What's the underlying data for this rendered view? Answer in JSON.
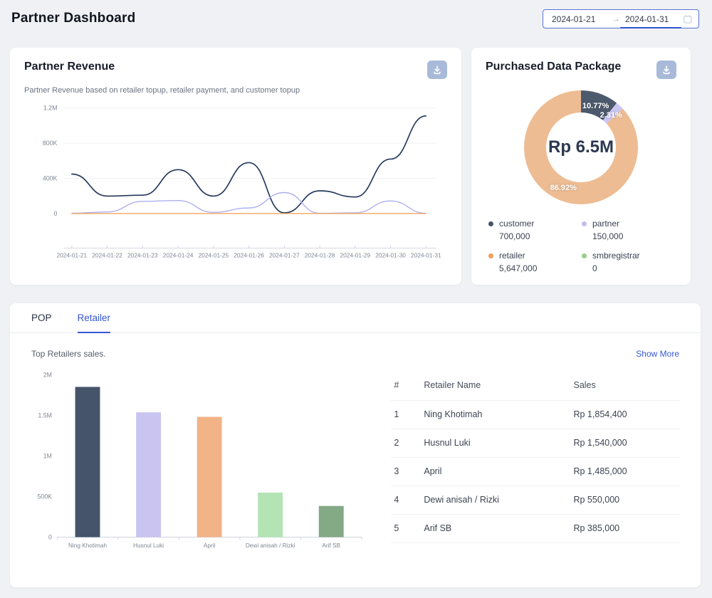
{
  "header": {
    "title": "Partner Dashboard",
    "date_range": {
      "start": "2024-01-21",
      "end": "2024-01-31"
    }
  },
  "revenue_card": {
    "title": "Partner Revenue",
    "subtitle": "Partner Revenue based on retailer topup, retailer payment, and customer topup"
  },
  "package_card": {
    "title": "Purchased Data Package",
    "center_label": "Rp 6.5M",
    "legend": [
      {
        "label": "customer",
        "value_display": "700,000",
        "color": "#44536b"
      },
      {
        "label": "partner",
        "value_display": "150,000",
        "color": "#c0bdf0"
      },
      {
        "label": "retailer",
        "value_display": "5,647,000",
        "color": "#ef9e5b"
      },
      {
        "label": "smbregistrar",
        "value_display": "0",
        "color": "#94d183"
      }
    ]
  },
  "bottom": {
    "tabs": [
      "POP",
      "Retailer"
    ],
    "active_tab": "Retailer",
    "caption": "Top Retailers sales.",
    "show_more": "Show More",
    "table": {
      "headers": [
        "#",
        "Retailer Name",
        "Sales"
      ],
      "rows": [
        [
          "1",
          "Ning Khotimah",
          "Rp 1,854,400"
        ],
        [
          "2",
          "Husnul Luki",
          "Rp 1,540,000"
        ],
        [
          "3",
          "April",
          "Rp 1,485,000"
        ],
        [
          "4",
          "Dewi anisah / Rizki",
          "Rp 550,000"
        ],
        [
          "5",
          "Arif SB",
          "Rp 385,000"
        ]
      ]
    }
  },
  "chart_data": [
    {
      "type": "line",
      "title": "Partner Revenue",
      "x": [
        "2024-01-21",
        "2024-01-22",
        "2024-01-23",
        "2024-01-24",
        "2024-01-25",
        "2024-01-26",
        "2024-01-27",
        "2024-01-28",
        "2024-01-29",
        "2024-01-30",
        "2024-01-31"
      ],
      "ylim": [
        0,
        1200000
      ],
      "yticks": [
        {
          "label": "0",
          "value": 0
        },
        {
          "label": "400K",
          "value": 400000
        },
        {
          "label": "800K",
          "value": 800000
        },
        {
          "label": "1.2M",
          "value": 1200000
        }
      ],
      "grid": true,
      "legend_position": "none",
      "series": [
        {
          "name": "navy-series",
          "color": "#24395c",
          "values": [
            450000,
            200000,
            210000,
            500000,
            200000,
            580000,
            10000,
            260000,
            190000,
            620000,
            1110000
          ]
        },
        {
          "name": "purple-series",
          "color": "#aeb0f0",
          "values": [
            5000,
            20000,
            140000,
            150000,
            15000,
            65000,
            240000,
            5000,
            10000,
            145000,
            5000
          ]
        },
        {
          "name": "orange-series",
          "color": "#f2a55e",
          "values": [
            2000,
            2000,
            2000,
            2000,
            2000,
            2000,
            2000,
            2000,
            2000,
            2000,
            2000
          ]
        }
      ]
    },
    {
      "type": "pie",
      "title": "Purchased Data Package",
      "center_label": "Rp 6.5M",
      "slices": [
        {
          "label": "customer",
          "value": 700000,
          "pct_label": "10.77%",
          "color": "#4d5a6d"
        },
        {
          "label": "partner",
          "value": 150000,
          "pct_label": "2.31%",
          "color": "#cac7f3"
        },
        {
          "label": "retailer",
          "value": 5647000,
          "pct_label": "86.92%",
          "color": "#eebc93"
        },
        {
          "label": "smbregistrar",
          "value": 0,
          "color": "#94d183"
        }
      ]
    },
    {
      "type": "bar",
      "title": "Top Retailers sales.",
      "categories": [
        "Ning Khotimah",
        "Husnul Luki",
        "April",
        "Dewi anisah /  Rizki",
        "Arif SB"
      ],
      "values": [
        1854400,
        1540000,
        1485000,
        550000,
        385000
      ],
      "colors": [
        "#45536b",
        "#c9c4f0",
        "#f2b386",
        "#b4e3b4",
        "#84a985"
      ],
      "ylim": [
        0,
        2000000
      ],
      "yticks": [
        {
          "label": "0",
          "value": 0
        },
        {
          "label": "500K",
          "value": 500000
        },
        {
          "label": "1M",
          "value": 1000000
        },
        {
          "label": "1.5M",
          "value": 1500000
        },
        {
          "label": "2M",
          "value": 2000000
        }
      ],
      "grid": false,
      "legend_position": "none"
    }
  ]
}
